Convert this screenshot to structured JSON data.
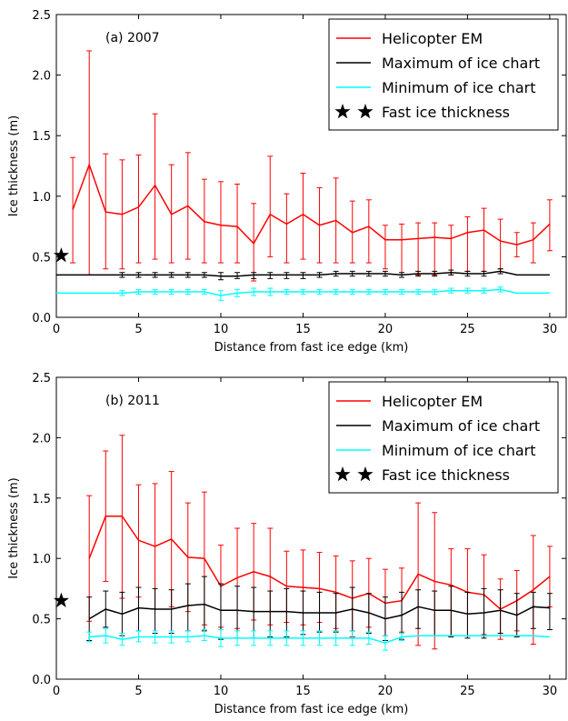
{
  "chart_data": [
    {
      "type": "line",
      "panel_label": "(a) 2007",
      "xlabel": "Distance from fast ice edge (km)",
      "ylabel": "Ice thickness (m)",
      "xlim": [
        0,
        31
      ],
      "ylim": [
        0,
        2.5
      ],
      "x_ticks": [
        0,
        5,
        10,
        15,
        20,
        25,
        30
      ],
      "y_ticks": [
        0.0,
        0.5,
        1.0,
        1.5,
        2.0,
        2.5
      ],
      "x_tick_labels": [
        "0",
        "5",
        "10",
        "15",
        "20",
        "25",
        "30"
      ],
      "y_tick_labels": [
        "0.0",
        "0.5",
        "1.0",
        "1.5",
        "2.0",
        "2.5"
      ],
      "legend_position": "top-right",
      "legend": [
        "Helicopter EM",
        "Maximum of ice chart",
        "Minimum of ice chart",
        "Fast ice thickness"
      ],
      "series": [
        {
          "name": "Helicopter EM",
          "color": "#ff0000",
          "x": [
            1,
            2,
            3,
            4,
            5,
            6,
            7,
            8,
            9,
            10,
            11,
            12,
            13,
            14,
            15,
            16,
            17,
            18,
            19,
            20,
            21,
            22,
            23,
            24,
            25,
            26,
            27,
            28,
            29,
            30
          ],
          "y": [
            0.89,
            1.26,
            0.87,
            0.85,
            0.91,
            1.09,
            0.85,
            0.92,
            0.79,
            0.76,
            0.75,
            0.61,
            0.85,
            0.77,
            0.85,
            0.76,
            0.8,
            0.7,
            0.75,
            0.64,
            0.64,
            0.65,
            0.66,
            0.65,
            0.7,
            0.72,
            0.63,
            0.6,
            0.64,
            0.77
          ],
          "err_low": [
            0.45,
            0.35,
            0.4,
            0.4,
            0.45,
            0.48,
            0.45,
            0.48,
            0.45,
            0.45,
            0.45,
            0.3,
            0.5,
            0.45,
            0.48,
            0.45,
            0.45,
            0.45,
            0.45,
            0.4,
            0.35,
            0.35,
            0.35,
            0.35,
            0.38,
            0.38,
            0.4,
            0.5,
            0.45,
            0.55
          ],
          "err_high": [
            1.32,
            2.2,
            1.35,
            1.3,
            1.34,
            1.68,
            1.26,
            1.36,
            1.14,
            1.12,
            1.1,
            0.94,
            1.33,
            1.02,
            1.19,
            1.07,
            1.15,
            0.96,
            0.97,
            0.76,
            0.77,
            0.78,
            0.78,
            0.76,
            0.83,
            0.9,
            0.81,
            0.7,
            0.78,
            0.97
          ]
        },
        {
          "name": "Maximum of ice chart",
          "color": "#000000",
          "x": [
            0,
            1,
            2,
            3,
            4,
            5,
            6,
            7,
            8,
            9,
            10,
            11,
            12,
            13,
            14,
            15,
            16,
            17,
            18,
            19,
            20,
            21,
            22,
            23,
            24,
            25,
            26,
            27,
            28,
            29,
            30
          ],
          "y": [
            0.35,
            0.35,
            0.35,
            0.35,
            0.35,
            0.35,
            0.35,
            0.35,
            0.35,
            0.35,
            0.34,
            0.34,
            0.35,
            0.35,
            0.35,
            0.35,
            0.35,
            0.36,
            0.36,
            0.36,
            0.36,
            0.35,
            0.36,
            0.36,
            0.37,
            0.36,
            0.36,
            0.38,
            0.35,
            0.35,
            0.35
          ],
          "err_low": [
            null,
            null,
            null,
            null,
            0.33,
            0.33,
            0.33,
            0.33,
            0.33,
            0.33,
            0.31,
            0.32,
            0.32,
            0.32,
            0.32,
            0.32,
            0.33,
            0.34,
            0.34,
            0.34,
            0.34,
            0.33,
            0.34,
            0.34,
            0.35,
            0.34,
            0.34,
            0.36,
            null,
            null,
            null
          ],
          "err_high": [
            null,
            null,
            null,
            null,
            0.37,
            0.37,
            0.37,
            0.37,
            0.37,
            0.37,
            0.37,
            0.37,
            0.37,
            0.37,
            0.37,
            0.37,
            0.37,
            0.38,
            0.38,
            0.38,
            0.38,
            0.37,
            0.38,
            0.38,
            0.39,
            0.38,
            0.38,
            0.4,
            null,
            null,
            null
          ]
        },
        {
          "name": "Minimum of ice chart",
          "color": "#00ffff",
          "x": [
            0,
            1,
            2,
            3,
            4,
            5,
            6,
            7,
            8,
            9,
            10,
            11,
            12,
            13,
            14,
            15,
            16,
            17,
            18,
            19,
            20,
            21,
            22,
            23,
            24,
            25,
            26,
            27,
            28,
            29,
            30
          ],
          "y": [
            0.2,
            0.2,
            0.2,
            0.2,
            0.2,
            0.21,
            0.21,
            0.21,
            0.21,
            0.21,
            0.18,
            0.2,
            0.21,
            0.21,
            0.21,
            0.21,
            0.21,
            0.21,
            0.21,
            0.21,
            0.21,
            0.21,
            0.21,
            0.21,
            0.22,
            0.22,
            0.22,
            0.23,
            0.2,
            0.2,
            0.2
          ],
          "err_low": [
            null,
            null,
            null,
            null,
            0.18,
            0.19,
            0.19,
            0.19,
            0.19,
            0.19,
            0.14,
            0.17,
            0.18,
            0.18,
            0.19,
            0.19,
            0.19,
            0.19,
            0.19,
            0.19,
            0.19,
            0.19,
            0.19,
            0.19,
            0.2,
            0.2,
            0.2,
            0.21,
            null,
            null,
            null
          ],
          "err_high": [
            null,
            null,
            null,
            null,
            0.22,
            0.23,
            0.23,
            0.23,
            0.23,
            0.23,
            0.22,
            0.23,
            0.24,
            0.24,
            0.23,
            0.23,
            0.23,
            0.23,
            0.23,
            0.23,
            0.23,
            0.23,
            0.23,
            0.23,
            0.24,
            0.24,
            0.24,
            0.25,
            null,
            null,
            null
          ]
        },
        {
          "name": "Fast ice thickness",
          "color": "#000000",
          "x": [
            0.3
          ],
          "y": [
            0.51
          ]
        }
      ]
    },
    {
      "type": "line",
      "panel_label": "(b) 2011",
      "xlabel": "Distance from fast ice edge (km)",
      "ylabel": "Ice thickness (m)",
      "xlim": [
        0,
        31
      ],
      "ylim": [
        0,
        2.5
      ],
      "x_ticks": [
        0,
        5,
        10,
        15,
        20,
        25,
        30
      ],
      "y_ticks": [
        0.0,
        0.5,
        1.0,
        1.5,
        2.0,
        2.5
      ],
      "x_tick_labels": [
        "0",
        "5",
        "10",
        "15",
        "20",
        "25",
        "30"
      ],
      "y_tick_labels": [
        "0.0",
        "0.5",
        "1.0",
        "1.5",
        "2.0",
        "2.5"
      ],
      "legend_position": "top-right",
      "legend": [
        "Helicopter EM",
        "Maximum of ice chart",
        "Minimum of ice chart",
        "Fast ice thickness"
      ],
      "series": [
        {
          "name": "Helicopter EM",
          "color": "#ff0000",
          "x": [
            2,
            3,
            4,
            5,
            6,
            7,
            8,
            9,
            10,
            11,
            12,
            13,
            14,
            15,
            16,
            17,
            18,
            19,
            20,
            21,
            22,
            23,
            24,
            25,
            26,
            27,
            28,
            29,
            30
          ],
          "y": [
            1.0,
            1.35,
            1.35,
            1.15,
            1.1,
            1.16,
            1.01,
            1.0,
            0.77,
            0.84,
            0.89,
            0.85,
            0.77,
            0.76,
            0.75,
            0.72,
            0.67,
            0.71,
            0.63,
            0.65,
            0.87,
            0.81,
            0.78,
            0.72,
            0.7,
            0.58,
            0.65,
            0.74,
            0.85
          ],
          "err_low": [
            0.48,
            0.81,
            0.67,
            0.68,
            0.58,
            0.6,
            0.56,
            0.45,
            0.43,
            0.42,
            0.49,
            0.45,
            0.47,
            0.45,
            0.47,
            0.42,
            0.35,
            0.43,
            0.36,
            0.39,
            0.28,
            0.25,
            0.36,
            0.36,
            0.37,
            0.33,
            0.4,
            0.29,
            0.6
          ],
          "err_high": [
            1.52,
            1.89,
            2.02,
            1.61,
            1.62,
            1.72,
            1.46,
            1.55,
            1.11,
            1.25,
            1.29,
            1.25,
            1.06,
            1.07,
            1.05,
            1.02,
            0.98,
            1.0,
            0.91,
            0.92,
            1.46,
            1.38,
            1.08,
            1.08,
            1.03,
            0.83,
            0.9,
            1.19,
            1.1
          ]
        },
        {
          "name": "Maximum of ice chart",
          "color": "#000000",
          "x": [
            2,
            3,
            4,
            5,
            6,
            7,
            8,
            9,
            10,
            11,
            12,
            13,
            14,
            15,
            16,
            17,
            18,
            19,
            20,
            21,
            22,
            23,
            24,
            25,
            26,
            27,
            28,
            29,
            30
          ],
          "y": [
            0.5,
            0.58,
            0.54,
            0.59,
            0.58,
            0.58,
            0.61,
            0.62,
            0.57,
            0.57,
            0.56,
            0.56,
            0.56,
            0.55,
            0.55,
            0.55,
            0.58,
            0.55,
            0.5,
            0.53,
            0.6,
            0.57,
            0.57,
            0.54,
            0.55,
            0.57,
            0.53,
            0.6,
            0.59
          ],
          "err_low": [
            0.32,
            0.43,
            0.36,
            0.4,
            0.38,
            0.38,
            0.4,
            0.4,
            0.33,
            0.34,
            0.34,
            0.35,
            0.35,
            0.37,
            0.39,
            0.39,
            0.4,
            0.38,
            0.32,
            0.33,
            0.42,
            0.36,
            0.35,
            0.34,
            0.34,
            0.38,
            0.35,
            0.42,
            0.41
          ],
          "err_high": [
            0.68,
            0.73,
            0.72,
            0.76,
            0.75,
            0.74,
            0.79,
            0.85,
            0.79,
            0.77,
            0.76,
            0.73,
            0.75,
            0.73,
            0.72,
            0.71,
            0.76,
            0.71,
            0.68,
            0.72,
            0.74,
            0.73,
            0.77,
            0.72,
            0.75,
            0.74,
            0.71,
            0.72,
            0.71
          ]
        },
        {
          "name": "Minimum of ice chart",
          "color": "#00ffff",
          "x": [
            2,
            3,
            4,
            5,
            6,
            7,
            8,
            9,
            10,
            11,
            12,
            13,
            14,
            15,
            16,
            17,
            18,
            19,
            20,
            21,
            22,
            23,
            24,
            25,
            26,
            27,
            28,
            29,
            30
          ],
          "y": [
            0.35,
            0.36,
            0.33,
            0.35,
            0.35,
            0.35,
            0.35,
            0.36,
            0.34,
            0.34,
            0.34,
            0.34,
            0.34,
            0.34,
            0.34,
            0.34,
            0.34,
            0.34,
            0.3,
            0.35,
            0.36,
            0.36,
            0.36,
            0.36,
            0.36,
            0.36,
            0.36,
            0.36,
            0.35
          ],
          "err_low": [
            0.31,
            0.3,
            0.28,
            0.31,
            0.3,
            0.3,
            0.31,
            0.32,
            0.27,
            0.28,
            0.28,
            0.28,
            0.28,
            0.28,
            0.28,
            0.28,
            0.28,
            0.29,
            0.24,
            0.32,
            null,
            null,
            null,
            null,
            null,
            null,
            null,
            null,
            null
          ],
          "err_high": [
            0.39,
            0.42,
            0.38,
            0.4,
            0.4,
            0.4,
            0.4,
            0.41,
            0.41,
            0.4,
            0.4,
            0.4,
            0.4,
            0.4,
            0.4,
            0.4,
            0.4,
            0.39,
            0.36,
            0.38,
            null,
            null,
            null,
            null,
            null,
            null,
            null,
            null,
            null
          ]
        },
        {
          "name": "Fast ice thickness",
          "color": "#000000",
          "x": [
            0.3
          ],
          "y": [
            0.65
          ]
        }
      ]
    }
  ]
}
